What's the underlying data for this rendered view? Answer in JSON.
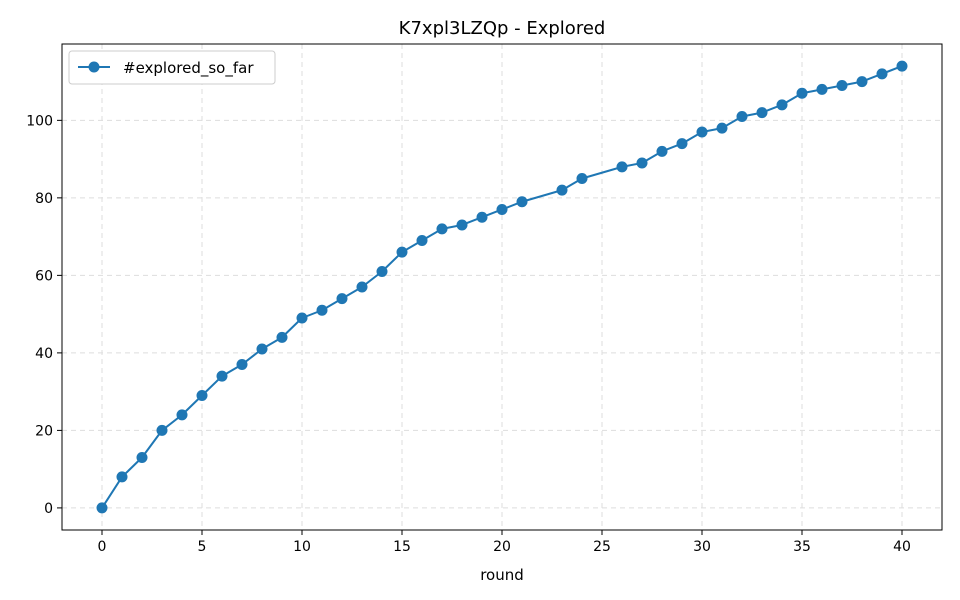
{
  "chart_data": {
    "type": "line",
    "title": "K7xpl3LZQp - Explored",
    "xlabel": "round",
    "ylabel": "",
    "xlim": [
      -2,
      42
    ],
    "ylim": [
      -5.7,
      119.7
    ],
    "xticks": [
      0,
      5,
      10,
      15,
      20,
      25,
      30,
      35,
      40
    ],
    "yticks": [
      0,
      20,
      40,
      60,
      80,
      100
    ],
    "grid": true,
    "legend_position": "upper left",
    "series": [
      {
        "name": "#explored_so_far",
        "color": "#1f77b4",
        "marker": "circle",
        "x": [
          0,
          1,
          2,
          3,
          4,
          5,
          6,
          7,
          8,
          9,
          10,
          11,
          12,
          13,
          14,
          15,
          16,
          17,
          18,
          19,
          20,
          21,
          23,
          24,
          26,
          27,
          28,
          29,
          30,
          31,
          32,
          33,
          34,
          35,
          36,
          37,
          38,
          39,
          40
        ],
        "y": [
          0,
          8,
          13,
          20,
          24,
          29,
          34,
          37,
          41,
          44,
          49,
          51,
          54,
          57,
          61,
          66,
          69,
          72,
          73,
          75,
          77,
          79,
          82,
          85,
          88,
          89,
          92,
          94,
          97,
          98,
          101,
          102,
          104,
          107,
          108,
          109,
          110,
          112,
          114
        ]
      }
    ]
  }
}
